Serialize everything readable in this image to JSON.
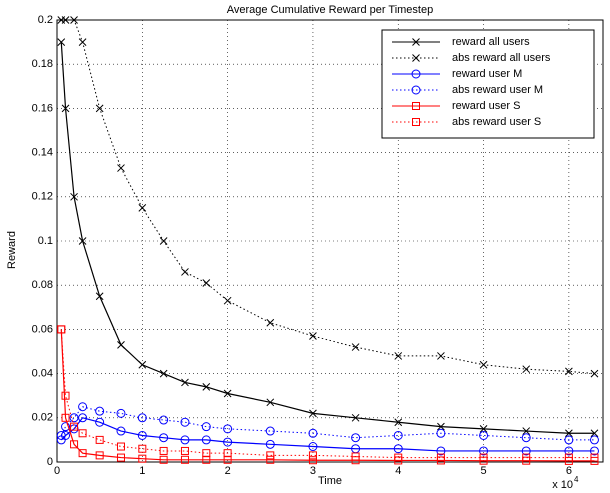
{
  "chart_data": {
    "type": "line",
    "title": "Average Cumulative Reward per Timestep",
    "xlabel": "Time",
    "ylabel": "Reward",
    "x_multiplier": "x 10",
    "x_exponent": "4",
    "x": [
      0.05,
      0.1,
      0.2,
      0.3,
      0.5,
      0.75,
      1,
      1.25,
      1.5,
      1.75,
      2,
      2.5,
      3,
      3.5,
      4,
      4.5,
      5,
      5.5,
      6,
      6.3
    ],
    "xlim": [
      0,
      6.4
    ],
    "xticks": [
      0,
      1,
      2,
      3,
      4,
      5,
      6
    ],
    "ylim": [
      0,
      0.2
    ],
    "yticks": [
      0,
      0.02,
      0.04,
      0.06,
      0.08,
      0.1,
      0.12,
      0.14,
      0.16,
      0.18,
      0.2
    ],
    "grid": true,
    "legend": "upper right",
    "series": [
      {
        "name": "reward all users",
        "color": "#000000",
        "dash": "solid",
        "marker": "x",
        "values": [
          0.19,
          0.16,
          0.12,
          0.1,
          0.075,
          0.053,
          0.044,
          0.04,
          0.036,
          0.034,
          0.031,
          0.027,
          0.022,
          0.02,
          0.018,
          0.016,
          0.015,
          0.014,
          0.013,
          0.013
        ]
      },
      {
        "name": "abs reward all users",
        "color": "#000000",
        "dash": "dotted",
        "marker": "x",
        "values": [
          0.2,
          0.2,
          0.2,
          0.19,
          0.16,
          0.133,
          0.115,
          0.1,
          0.086,
          0.081,
          0.073,
          0.063,
          0.057,
          0.052,
          0.048,
          0.048,
          0.044,
          0.042,
          0.041,
          0.04
        ]
      },
      {
        "name": "reward user M",
        "color": "#0000ff",
        "dash": "solid",
        "marker": "circle",
        "values": [
          0.01,
          0.012,
          0.015,
          0.02,
          0.018,
          0.014,
          0.012,
          0.011,
          0.01,
          0.01,
          0.009,
          0.008,
          0.007,
          0.006,
          0.006,
          0.005,
          0.005,
          0.005,
          0.005,
          0.005
        ]
      },
      {
        "name": "abs reward user M",
        "color": "#0000ff",
        "dash": "dotted",
        "marker": "circle",
        "values": [
          0.012,
          0.016,
          0.02,
          0.025,
          0.023,
          0.022,
          0.02,
          0.019,
          0.018,
          0.016,
          0.015,
          0.014,
          0.013,
          0.011,
          0.012,
          0.013,
          0.012,
          0.011,
          0.01,
          0.01
        ]
      },
      {
        "name": "reward user S",
        "color": "#ff0000",
        "dash": "solid",
        "marker": "square",
        "values": [
          0.06,
          0.02,
          0.008,
          0.004,
          0.003,
          0.002,
          0.0015,
          0.001,
          0.001,
          0.001,
          0.001,
          0.001,
          0.0008,
          0.0008,
          0.0007,
          0.0007,
          0.0006,
          0.0006,
          0.0005,
          0.0005
        ]
      },
      {
        "name": "abs reward user S",
        "color": "#ff0000",
        "dash": "dotted",
        "marker": "square",
        "values": [
          0.06,
          0.03,
          0.016,
          0.013,
          0.01,
          0.007,
          0.006,
          0.005,
          0.005,
          0.004,
          0.004,
          0.003,
          0.003,
          0.0025,
          0.002,
          0.002,
          0.002,
          0.002,
          0.002,
          0.002
        ]
      }
    ]
  }
}
